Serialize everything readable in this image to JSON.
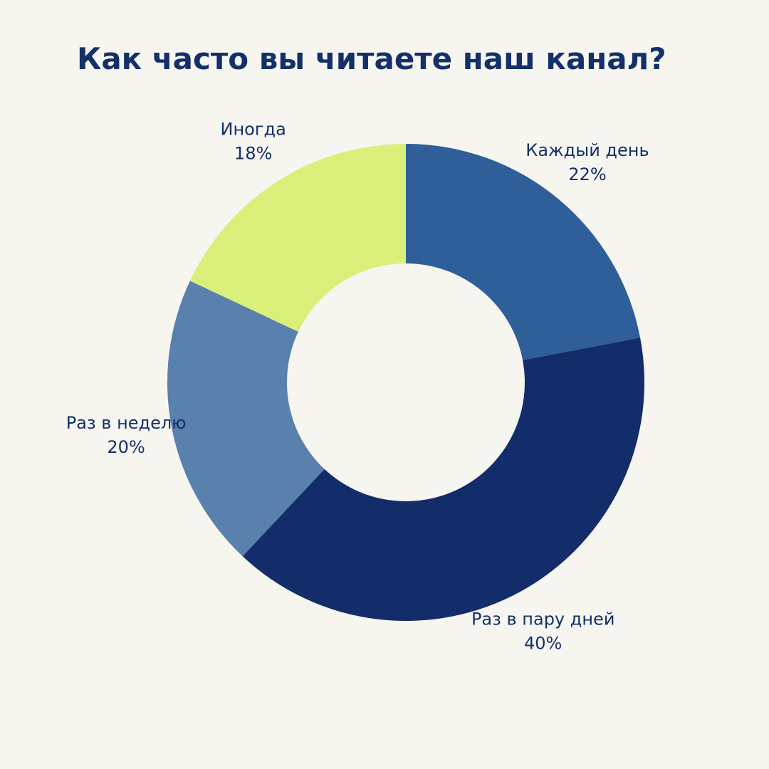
{
  "chart_data": {
    "type": "donut",
    "title": "Как часто вы читаете наш канал?",
    "categories": [
      "Каждый день",
      "Раз в пару дней",
      "Раз в неделю",
      "Иногда"
    ],
    "values": [
      22,
      40,
      20,
      18
    ],
    "value_labels": [
      "22%",
      "40%",
      "20%",
      "18%"
    ],
    "colors": [
      "#2f5f98",
      "#132d6a",
      "#5a80ad",
      "#d9ef79"
    ]
  }
}
